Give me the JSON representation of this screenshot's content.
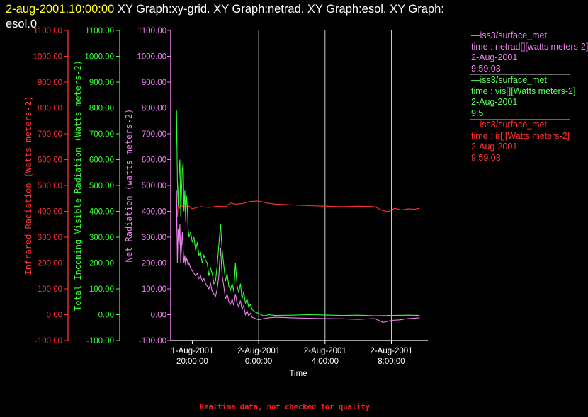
{
  "header": {
    "timestamp": "2-aug-2001,10:00:00",
    "title_line1": "XY Graph:xy-grid.  XY Graph:netrad.  XY Graph:esol.  XY Graph:",
    "title_line2": "esol.0"
  },
  "footer_note": "Realtime data, not checked for quality",
  "colors": {
    "infrared": "#ff3333",
    "visible": "#33ff33",
    "net": "#ee82ee",
    "grid": "#cccccc"
  },
  "legend": [
    {
      "line1": "—iss3/surface_met",
      "line2": "time : netrad[][watts meters-2]",
      "line3": "2-Aug-2001",
      "line4": "9:59:03",
      "color_class": "p"
    },
    {
      "line1": "—iss3/surface_met",
      "line2": "time : vis[][Watts meters-2]",
      "line3": "2-Aug-2001",
      "line4": "9:5",
      "color_class": "g"
    },
    {
      "line1": "—iss3/surface_met",
      "line2": "time : ir[][Watts meters-2]",
      "line3": "2-Aug-2001",
      "line4": "9:59:03",
      "color_class": "r"
    }
  ],
  "chart_data": {
    "type": "line",
    "xlabel": "Time",
    "x_ticks": [
      {
        "t": 0,
        "l1": "1-Aug-2001",
        "l2": "20:00:00"
      },
      {
        "t": 4,
        "l1": "2-Aug-2001",
        "l2": "0:00:00"
      },
      {
        "t": 8,
        "l1": "2-Aug-2001",
        "l2": "4:00:00"
      },
      {
        "t": 12,
        "l1": "2-Aug-2001",
        "l2": "8:00:00"
      }
    ],
    "xlim": [
      -1.3,
      14.2
    ],
    "ylim": [
      -100,
      1100
    ],
    "y_ticks": [
      "-100.00",
      "0.00",
      "100.00",
      "200.00",
      "300.00",
      "400.00",
      "500.00",
      "600.00",
      "700.00",
      "800.00",
      "900.00",
      "1000.00",
      "1100.00"
    ],
    "y_axes": [
      {
        "label": "Infrared Radiation (Watts meters-2)",
        "color": "#ff3333"
      },
      {
        "label": "Total Incoming Visible Radiation (Watts meters-2)",
        "color": "#33ff33"
      },
      {
        "label": "Net Radiation (watts meters-2)",
        "color": "#ee82ee"
      }
    ],
    "series": [
      {
        "name": "ir",
        "color": "#ff3333",
        "x": [
          -0.95,
          -0.9,
          -0.85,
          -0.8,
          -0.7,
          -0.5,
          -0.2,
          0,
          0.5,
          1,
          1.5,
          2,
          2.3,
          2.6,
          3,
          3.5,
          4,
          4.5,
          5,
          6,
          7,
          8,
          9,
          10,
          11,
          11.4,
          11.8,
          12.2,
          12.6,
          13,
          13.4,
          13.7
        ],
        "y": [
          420,
          380,
          430,
          410,
          425,
          415,
          420,
          410,
          418,
          415,
          420,
          418,
          432,
          428,
          430,
          438,
          440,
          432,
          428,
          425,
          422,
          420,
          418,
          420,
          418,
          405,
          398,
          412,
          405,
          410,
          408,
          412
        ]
      },
      {
        "name": "vis",
        "color": "#33ff33",
        "x": [
          -0.98,
          -0.95,
          -0.9,
          -0.85,
          -0.8,
          -0.75,
          -0.7,
          -0.65,
          -0.6,
          -0.55,
          -0.5,
          -0.45,
          -0.4,
          -0.35,
          -0.3,
          -0.25,
          -0.2,
          -0.1,
          0,
          0.1,
          0.2,
          0.3,
          0.4,
          0.5,
          0.6,
          0.7,
          0.8,
          0.9,
          1.0,
          1.1,
          1.2,
          1.3,
          1.4,
          1.5,
          1.6,
          1.7,
          1.8,
          1.9,
          2.0,
          2.1,
          2.2,
          2.3,
          2.4,
          2.5,
          2.6,
          2.7,
          2.8,
          2.9,
          3.0,
          3.1,
          3.2,
          3.3,
          3.4,
          3.5,
          3.6,
          3.8,
          4.0,
          4.3,
          4.6,
          5,
          6,
          7,
          8,
          9,
          10,
          11,
          12,
          13,
          13.7
        ],
        "y": [
          650,
          790,
          520,
          420,
          540,
          600,
          380,
          470,
          560,
          590,
          400,
          480,
          360,
          460,
          420,
          330,
          300,
          320,
          280,
          300,
          250,
          280,
          230,
          240,
          200,
          230,
          210,
          200,
          150,
          180,
          160,
          120,
          130,
          190,
          270,
          350,
          250,
          190,
          130,
          160,
          110,
          95,
          120,
          90,
          200,
          110,
          85,
          120,
          60,
          90,
          45,
          60,
          30,
          40,
          20,
          10,
          5,
          -5,
          0,
          -3,
          -2,
          0,
          -1,
          -3,
          -2,
          -4,
          -3,
          -2,
          -3
        ]
      },
      {
        "name": "netrad",
        "color": "#ee82ee",
        "x": [
          -0.98,
          -0.95,
          -0.9,
          -0.85,
          -0.8,
          -0.75,
          -0.7,
          -0.65,
          -0.6,
          -0.55,
          -0.5,
          -0.45,
          -0.4,
          -0.35,
          -0.3,
          -0.25,
          -0.2,
          -0.1,
          0,
          0.1,
          0.2,
          0.3,
          0.4,
          0.5,
          0.6,
          0.7,
          0.8,
          0.9,
          1.0,
          1.1,
          1.2,
          1.3,
          1.4,
          1.5,
          1.6,
          1.7,
          1.8,
          1.9,
          2.0,
          2.1,
          2.2,
          2.3,
          2.4,
          2.5,
          2.6,
          2.7,
          2.8,
          2.9,
          3.0,
          3.1,
          3.2,
          3.3,
          3.4,
          3.5,
          3.6,
          3.8,
          4.0,
          4.3,
          4.6,
          5,
          6,
          7,
          8,
          9,
          10,
          11,
          11.5,
          12,
          12.5,
          13,
          13.7
        ],
        "y": [
          300,
          480,
          200,
          330,
          270,
          350,
          200,
          260,
          320,
          250,
          200,
          230,
          190,
          220,
          210,
          190,
          200,
          180,
          170,
          160,
          150,
          160,
          140,
          150,
          130,
          140,
          120,
          110,
          100,
          120,
          90,
          80,
          70,
          100,
          150,
          260,
          150,
          110,
          60,
          80,
          50,
          40,
          60,
          35,
          80,
          45,
          30,
          55,
          20,
          35,
          0,
          15,
          -5,
          5,
          -10,
          -15,
          -20,
          -15,
          -12,
          -10,
          -12,
          -14,
          -15,
          -16,
          -18,
          -15,
          -30,
          -22,
          -20,
          -15,
          -12
        ]
      }
    ]
  }
}
